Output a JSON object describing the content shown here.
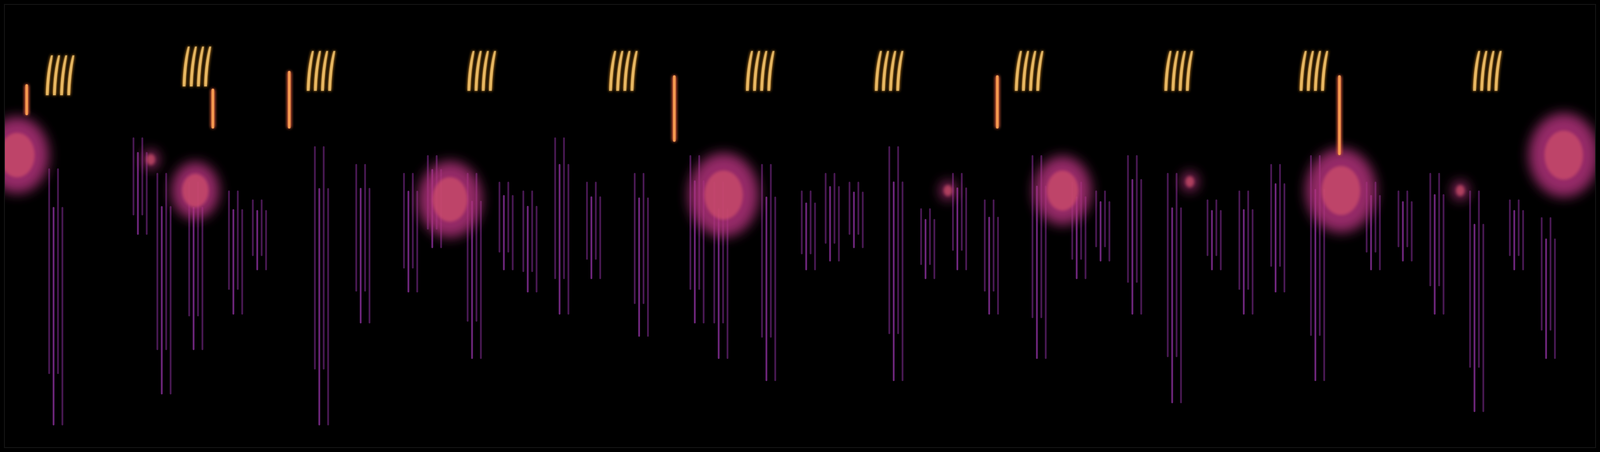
{
  "chart_data": {
    "type": "spectrogram",
    "xlim": [
      0,
      100
    ],
    "ylim": [
      0,
      100
    ],
    "xticks": [],
    "yticks": [],
    "tick_labels": false,
    "grid": false,
    "series": [
      {
        "color": "#f7a12a",
        "marker": "chirp",
        "x": [
          3.5,
          12.1,
          19.9,
          30.0,
          38.9,
          47.5,
          55.6,
          64.4,
          73.8,
          82.3,
          93.2
        ],
        "values": [
          84,
          86,
          85,
          85,
          85,
          85,
          85,
          85,
          85,
          85,
          85
        ]
      },
      {
        "color": "#e8603c",
        "marker": "streak",
        "x": [
          1.4,
          13.1,
          17.9,
          42.1,
          62.4,
          83.9
        ],
        "values": [
          82,
          81,
          85,
          84,
          84,
          84
        ],
        "low": [
          75,
          72,
          72,
          69,
          72,
          66
        ]
      },
      {
        "color": "#b0307a",
        "marker": "patch",
        "x": [
          0.8,
          9.2,
          12.0,
          28.0,
          45.2,
          59.3,
          66.5,
          74.5,
          84.0,
          91.5,
          98.0
        ],
        "values": [
          66,
          65,
          58,
          56,
          57,
          58,
          58,
          60,
          58,
          58,
          66
        ],
        "spread": [
          2.0,
          0.5,
          1.5,
          2.0,
          2.2,
          0.5,
          1.8,
          0.5,
          2.2,
          0.5,
          2.2
        ]
      },
      {
        "color": "#7a2a8a",
        "marker": "streak",
        "x": [
          3.2,
          19.9,
          12.0,
          8.5,
          10.0,
          14.5,
          16.0,
          22.5,
          25.5,
          27.0,
          29.5,
          31.5,
          33.0,
          35.0,
          37.0,
          40.0,
          43.5,
          45.0,
          48.0,
          50.5,
          52.0,
          53.5,
          56.0,
          58.0,
          60.0,
          62.0,
          65.0,
          67.5,
          69.0,
          71.0,
          73.5,
          76.0,
          78.0,
          80.0,
          82.5,
          86.0,
          88.0,
          90.0,
          92.5,
          95.0,
          97.0
        ],
        "values": [
          63,
          68,
          60,
          70,
          62,
          58,
          56,
          64,
          62,
          66,
          62,
          60,
          58,
          70,
          60,
          62,
          66,
          60,
          64,
          58,
          62,
          60,
          68,
          54,
          62,
          56,
          66,
          60,
          58,
          66,
          62,
          56,
          58,
          64,
          66,
          60,
          58,
          62,
          58,
          56,
          52
        ],
        "low": [
          5,
          5,
          22,
          48,
          12,
          30,
          40,
          28,
          35,
          45,
          20,
          40,
          35,
          30,
          38,
          25,
          28,
          20,
          15,
          40,
          42,
          45,
          15,
          38,
          40,
          30,
          20,
          38,
          42,
          30,
          10,
          40,
          30,
          35,
          15,
          40,
          42,
          30,
          8,
          40,
          20
        ]
      }
    ]
  }
}
